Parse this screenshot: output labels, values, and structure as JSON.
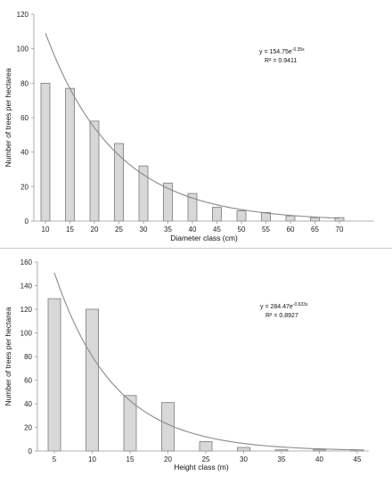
{
  "chart_data": [
    {
      "type": "bar",
      "categories": [
        "10",
        "15",
        "20",
        "25",
        "30",
        "35",
        "40",
        "45",
        "50",
        "55",
        "60",
        "65",
        "70"
      ],
      "values": [
        80,
        77,
        58,
        45,
        32,
        22,
        16,
        8,
        6,
        5,
        3,
        2,
        2
      ],
      "ylim": [
        0,
        120
      ],
      "yticks": [
        "0",
        "20",
        "40",
        "60",
        "80",
        "100",
        "120"
      ],
      "xlabel": "Diameter class (cm)",
      "ylabel": "Number of trees per hectarea",
      "trendline": {
        "type": "exponential",
        "a": 154.75,
        "b": -0.35,
        "equation_main": "y = 154.75e",
        "equation_exp": "-0.35x",
        "r2": "R² = 0.9411"
      }
    },
    {
      "type": "bar",
      "categories": [
        "5",
        "10",
        "15",
        "20",
        "25",
        "30",
        "35",
        "40",
        "45"
      ],
      "values": [
        129,
        120,
        47,
        41,
        8,
        3,
        1,
        1,
        1
      ],
      "ylim": [
        0,
        160
      ],
      "yticks": [
        "0",
        "20",
        "40",
        "60",
        "80",
        "100",
        "120",
        "140",
        "160"
      ],
      "xlabel": "Height class (m)",
      "ylabel": "Number of trees per hectarea",
      "trendline": {
        "type": "exponential",
        "a": 284.47,
        "b": -0.633,
        "equation_main": "y = 284.47e",
        "equation_exp": "-0.633x",
        "r2": "R² = 0.8927"
      }
    }
  ]
}
